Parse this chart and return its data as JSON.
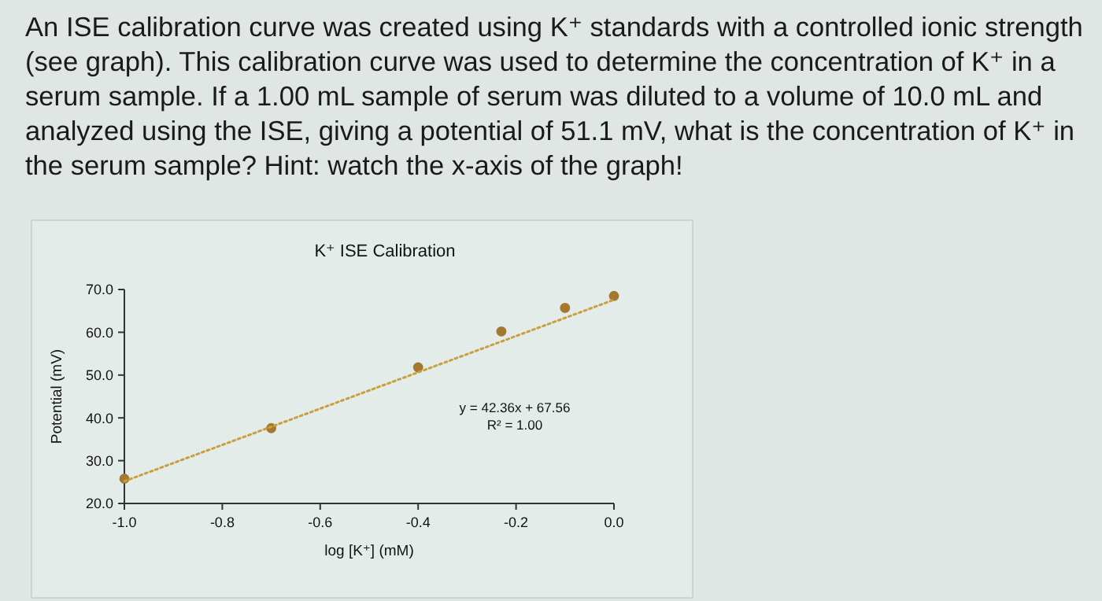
{
  "chart_data": {
    "type": "scatter",
    "title": "K⁺ ISE Calibration",
    "xlabel": "log [K⁺] (mM)",
    "ylabel": "Potential (mV)",
    "annotations": [
      "An ISE calibration curve was created using K⁺ standards with a controlled ionic strength (see graph). This calibration curve was used to determine the concentration of K⁺ in a serum sample. If a 1.00 mL sample of serum was diluted to a volume of 10.0 mL and analyzed using the ISE, giving a potential of 51.1 mV, what is the concentration of K⁺ in the serum sample? Hint: watch the x-axis of the graph!",
      "y = 42.36x + 67.56",
      "R² = 1.00"
    ],
    "x": [
      -1.0,
      -0.7,
      -0.4,
      -0.23,
      -0.1,
      0.0
    ],
    "series": [
      {
        "color": "#a4782e",
        "values": [
          25.8,
          37.6,
          51.8,
          60.2,
          65.7,
          68.5
        ],
        "marker": "circle"
      },
      {
        "type": "line",
        "color": "#c9a040",
        "x": [
          -1.0,
          0.0
        ],
        "values": [
          25.2,
          67.6
        ],
        "line_style": "dotted",
        "marker": "none"
      }
    ],
    "xlim": [
      -1.0,
      0.0
    ],
    "xticks": [
      {
        "value": -1.0,
        "label": "-1.0"
      },
      {
        "value": -0.8,
        "label": "-0.8"
      },
      {
        "value": -0.6,
        "label": "-0.6"
      },
      {
        "value": -0.4,
        "label": "-0.4"
      },
      {
        "value": -0.2,
        "label": "-0.2"
      },
      {
        "value": 0.0,
        "label": "0.0"
      }
    ],
    "ylim": [
      20,
      70
    ],
    "yticks": [
      {
        "value": 20,
        "label": "20.0"
      },
      {
        "value": 30,
        "label": "30.0"
      },
      {
        "value": 40,
        "label": "40.0"
      },
      {
        "value": 50,
        "label": "50.0"
      },
      {
        "value": 60,
        "label": "60.0"
      },
      {
        "value": 70,
        "label": "70.0"
      }
    ],
    "grid": false
  }
}
